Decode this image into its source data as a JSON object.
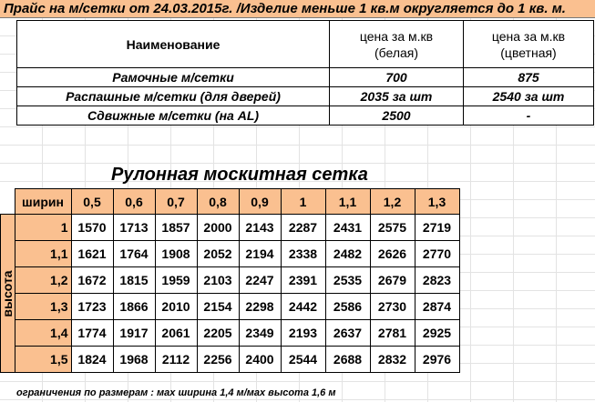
{
  "title": "Прайс на м/сетки от 24.03.2015г. /Изделие меньше 1 кв.м округляется до 1 кв. м.",
  "price_table": {
    "col_name": "Наименование",
    "col_white_line1": "цена за м.кв",
    "col_white_line2": "(белая)",
    "col_color_line1": "цена за м.кв",
    "col_color_line2": "(цветная)",
    "rows": [
      {
        "name": "Рамочные м/сетки",
        "white": "700",
        "color": "875"
      },
      {
        "name": "Распашные м/сетки (для дверей)",
        "white": "2035 за шт",
        "color": "2540 за шт"
      },
      {
        "name": "Сдвижные м/сетки (на AL)",
        "white": "2500",
        "color": "-"
      }
    ]
  },
  "roll": {
    "title": "Рулонная москитная сетка",
    "width_label": "ширин",
    "height_label": "высота",
    "widths": [
      "0,5",
      "0,6",
      "0,7",
      "0,8",
      "0,9",
      "1",
      "1,1",
      "1,2",
      "1,3"
    ],
    "rows": [
      {
        "h": "1",
        "v": [
          "1570",
          "1713",
          "1857",
          "2000",
          "2143",
          "2287",
          "2431",
          "2575",
          "2719"
        ]
      },
      {
        "h": "1,1",
        "v": [
          "1621",
          "1764",
          "1908",
          "2052",
          "2194",
          "2338",
          "2482",
          "2626",
          "2770"
        ]
      },
      {
        "h": "1,2",
        "v": [
          "1672",
          "1815",
          "1959",
          "2103",
          "2247",
          "2391",
          "2535",
          "2679",
          "2823"
        ]
      },
      {
        "h": "1,3",
        "v": [
          "1723",
          "1866",
          "2010",
          "2154",
          "2298",
          "2442",
          "2586",
          "2730",
          "2874"
        ]
      },
      {
        "h": "1,4",
        "v": [
          "1774",
          "1917",
          "2061",
          "2205",
          "2349",
          "2193",
          "2637",
          "2781",
          "2925"
        ]
      },
      {
        "h": "1,5",
        "v": [
          "1824",
          "1968",
          "2112",
          "2256",
          "2400",
          "2544",
          "2688",
          "2832",
          "2976"
        ]
      }
    ]
  },
  "note": "ограничения по размерам : мах ширина 1,4 м/мах высота 1,6 м",
  "colors": {
    "accent": "#fac090",
    "grid": "#e3e3e3"
  }
}
